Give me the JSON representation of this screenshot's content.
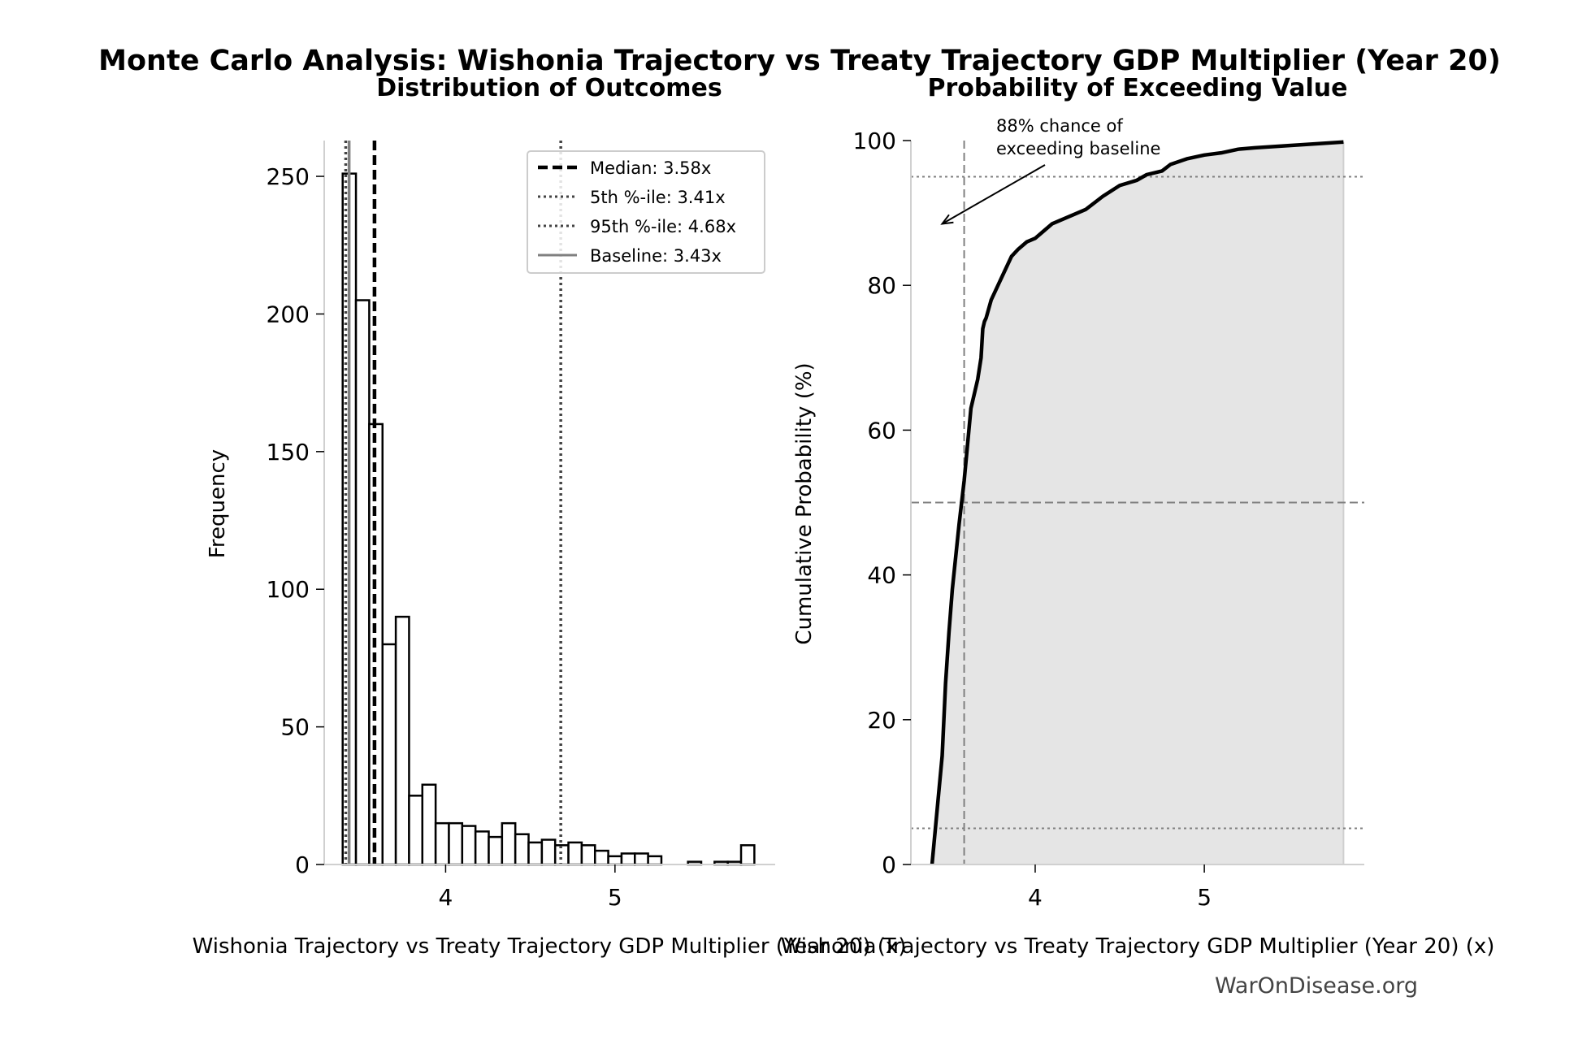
{
  "title": "Monte Carlo Analysis: Wishonia Trajectory vs Treaty Trajectory GDP Multiplier (Year 20)",
  "watermark": "WarOnDisease.org",
  "colors": {
    "bar_edge": "#000000",
    "bar_fill": "#ffffff",
    "median": "#000000",
    "percentile": "#444444",
    "baseline": "#808080",
    "cdf_fill": "#e5e5e5",
    "cdf_line": "#000000"
  },
  "chart_data": [
    {
      "type": "bar",
      "title": "Distribution of Outcomes",
      "xlabel": "Wishonia Trajectory vs Treaty Trajectory GDP Multiplier (Year 20) (x)",
      "ylabel": "Frequency",
      "xlim": [
        3.283,
        5.946
      ],
      "ylim": [
        0,
        263
      ],
      "xticks": [
        4,
        5
      ],
      "yticks": [
        0,
        50,
        100,
        150,
        200,
        250
      ],
      "grid": false,
      "bin_range": [
        3.392,
        5.823
      ],
      "counts": [
        251,
        205,
        160,
        80,
        90,
        25,
        29,
        15,
        15,
        14,
        12,
        10,
        15,
        11,
        8,
        9,
        7,
        8,
        7,
        5,
        3,
        4,
        4,
        3,
        0,
        0,
        1,
        0,
        1,
        1,
        7
      ],
      "vlines": [
        {
          "name": "Median: 3.58x",
          "x": 3.58,
          "style": "dashed",
          "color": "#000000"
        },
        {
          "name": "5th %-ile: 3.41x",
          "x": 3.41,
          "style": "dotted",
          "color": "#444444"
        },
        {
          "name": "95th %-ile: 4.68x",
          "x": 4.68,
          "style": "dotted",
          "color": "#444444"
        },
        {
          "name": "Baseline: 3.43x",
          "x": 3.43,
          "style": "solid",
          "color": "#808080"
        }
      ],
      "legend_position": "top-right"
    },
    {
      "type": "area",
      "title": "Probability of Exceeding Value",
      "xlabel": "Wishonia Trajectory vs Treaty Trajectory GDP Multiplier (Year 20) (x)",
      "ylabel": "Cumulative Probability (%)",
      "xlim": [
        3.265,
        5.946
      ],
      "ylim": [
        0,
        100
      ],
      "xticks": [
        4,
        5
      ],
      "yticks": [
        0,
        20,
        40,
        60,
        80,
        100
      ],
      "grid": false,
      "x": [
        3.39,
        3.41,
        3.43,
        3.45,
        3.47,
        3.49,
        3.51,
        3.55,
        3.58,
        3.6,
        3.62,
        3.64,
        3.66,
        3.68,
        3.69,
        3.7,
        3.71,
        3.74,
        3.78,
        3.82,
        3.86,
        3.9,
        3.95,
        4.0,
        4.05,
        4.1,
        4.2,
        4.3,
        4.4,
        4.5,
        4.6,
        4.66,
        4.75,
        4.8,
        4.9,
        5.0,
        5.1,
        5.2,
        5.3,
        5.823
      ],
      "y": [
        0,
        5,
        10,
        15,
        25,
        32,
        38,
        47,
        53,
        58,
        63,
        65,
        67,
        70,
        74,
        75,
        75.5,
        78,
        80,
        82,
        84,
        85,
        86,
        86.5,
        87.5,
        88.5,
        89.5,
        90.5,
        92.3,
        93.8,
        94.5,
        95.3,
        95.8,
        96.7,
        97.5,
        98,
        98.3,
        98.8,
        99,
        99.8
      ],
      "hlines": [
        {
          "y": 50,
          "style": "dashed"
        },
        {
          "y": 5,
          "style": "dotted"
        },
        {
          "y": 95,
          "style": "dotted"
        }
      ],
      "vline": {
        "x": 3.58,
        "style": "dashed"
      },
      "annotation": {
        "lines": [
          "88% chance of",
          "exceeding baseline"
        ],
        "arrow_to": [
          3.45,
          88.5
        ]
      }
    }
  ]
}
